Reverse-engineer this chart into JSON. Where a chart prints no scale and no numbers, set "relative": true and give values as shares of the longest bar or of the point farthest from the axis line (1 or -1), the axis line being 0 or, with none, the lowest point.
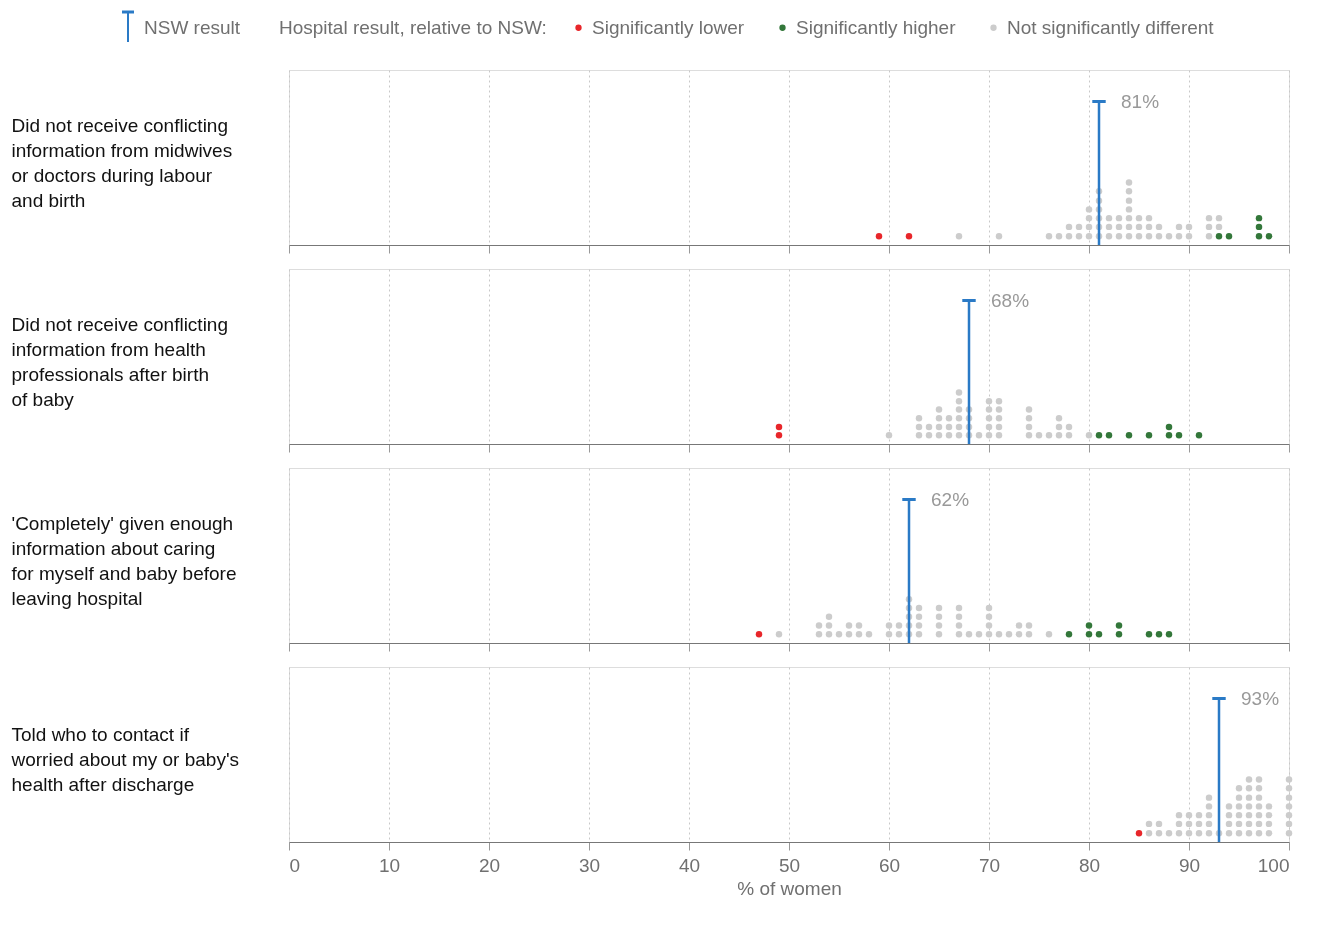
{
  "chart_data": [
    {
      "type": "scatter",
      "relative": true,
      "ylabel": "Did not receive conflicting information from midwives or doctors during labour and birth",
      "legend_title": "Hospital result, relative to NSW:",
      "annotations": [
        "NSW result"
      ],
      "legend": "top right",
      "marker": "circle",
      "grid": "x",
      "tick_labels": false,
      "xlim": [
        0,
        100
      ],
      "xticks": [
        0,
        10,
        20,
        30,
        40,
        50,
        60,
        70,
        80,
        90,
        100
      ],
      "ref_lines": [
        {
          "axis": "x",
          "value": 81,
          "label": "81%",
          "color": "#2a7ac6"
        }
      ],
      "series": [
        {
          "name": "Significantly lower",
          "color": "#e8262a",
          "x": [
            59,
            62
          ],
          "values": [
            0.14,
            0.14
          ]
        },
        {
          "name": "Significantly higher",
          "color": "#33773a",
          "x": [
            93,
            94,
            97,
            97,
            97,
            98
          ],
          "values": [
            0.14,
            0.14,
            0.14,
            0.29,
            0.43,
            0.14
          ]
        },
        {
          "name": "Not significantly different",
          "color": "#cccccc",
          "x": [
            67,
            71,
            76,
            77,
            78,
            78,
            79,
            79,
            80,
            80,
            80,
            80,
            81,
            81,
            81,
            81,
            81,
            81,
            82,
            82,
            82,
            83,
            83,
            83,
            84,
            84,
            84,
            84,
            84,
            84,
            84,
            85,
            85,
            85,
            86,
            86,
            86,
            87,
            87,
            88,
            89,
            89,
            90,
            90,
            92,
            92,
            92,
            93,
            93
          ],
          "values": [
            0.14,
            0.14,
            0.14,
            0.14,
            0.14,
            0.29,
            0.14,
            0.29,
            0.14,
            0.29,
            0.43,
            0.57,
            0.14,
            0.29,
            0.43,
            0.57,
            0.71,
            0.86,
            0.14,
            0.29,
            0.43,
            0.14,
            0.29,
            0.43,
            0.14,
            0.29,
            0.43,
            0.57,
            0.71,
            0.86,
            1,
            0.14,
            0.29,
            0.43,
            0.14,
            0.29,
            0.43,
            0.14,
            0.29,
            0.14,
            0.14,
            0.29,
            0.14,
            0.29,
            0.14,
            0.29,
            0.43,
            0.29,
            0.43
          ]
        }
      ]
    },
    {
      "type": "scatter",
      "relative": true,
      "ylabel": "Did not receive conflicting information from health professionals after birth of baby",
      "marker": "circle",
      "grid": "x",
      "tick_labels": false,
      "xlim": [
        0,
        100
      ],
      "xticks": [
        0,
        10,
        20,
        30,
        40,
        50,
        60,
        70,
        80,
        90,
        100
      ],
      "ref_lines": [
        {
          "axis": "x",
          "value": 68,
          "label": "68%",
          "color": "#2a7ac6"
        }
      ],
      "series": [
        {
          "name": "Significantly lower",
          "color": "#e8262a",
          "x": [
            49,
            49
          ],
          "values": [
            0.17,
            0.33
          ]
        },
        {
          "name": "Significantly higher",
          "color": "#33773a",
          "x": [
            81,
            82,
            84,
            86,
            88,
            88,
            89,
            91
          ],
          "values": [
            0.17,
            0.17,
            0.17,
            0.17,
            0.17,
            0.33,
            0.17,
            0.17
          ]
        },
        {
          "name": "Not significantly different",
          "color": "#cccccc",
          "x": [
            60,
            63,
            63,
            63,
            64,
            64,
            65,
            65,
            65,
            65,
            66,
            66,
            66,
            67,
            67,
            67,
            67,
            67,
            67,
            68,
            68,
            68,
            68,
            69,
            70,
            70,
            70,
            70,
            70,
            71,
            71,
            71,
            71,
            71,
            74,
            74,
            74,
            74,
            75,
            76,
            77,
            77,
            77,
            78,
            78,
            80
          ],
          "values": [
            0.17,
            0.17,
            0.33,
            0.5,
            0.17,
            0.33,
            0.17,
            0.33,
            0.5,
            0.67,
            0.17,
            0.33,
            0.5,
            0.17,
            0.33,
            0.5,
            0.67,
            0.83,
            1,
            0.17,
            0.33,
            0.5,
            0.67,
            0.17,
            0.17,
            0.33,
            0.5,
            0.67,
            0.83,
            0.17,
            0.33,
            0.5,
            0.67,
            0.83,
            0.17,
            0.33,
            0.5,
            0.67,
            0.17,
            0.17,
            0.17,
            0.33,
            0.5,
            0.17,
            0.33,
            0.17
          ]
        }
      ]
    },
    {
      "type": "scatter",
      "relative": true,
      "ylabel": "'Completely' given enough information about caring for myself and baby before leaving hospital",
      "marker": "circle",
      "grid": "x",
      "tick_labels": false,
      "xlim": [
        0,
        100
      ],
      "xticks": [
        0,
        10,
        20,
        30,
        40,
        50,
        60,
        70,
        80,
        90,
        100
      ],
      "ref_lines": [
        {
          "axis": "x",
          "value": 62,
          "label": "62%",
          "color": "#2a7ac6"
        }
      ],
      "series": [
        {
          "name": "Significantly lower",
          "color": "#e8262a",
          "x": [
            47
          ],
          "values": [
            0.2
          ]
        },
        {
          "name": "Significantly higher",
          "color": "#33773a",
          "x": [
            78,
            80,
            80,
            81,
            83,
            83,
            86,
            87,
            88
          ],
          "values": [
            0.2,
            0.2,
            0.4,
            0.2,
            0.2,
            0.4,
            0.2,
            0.2,
            0.2
          ]
        },
        {
          "name": "Not significantly different",
          "color": "#cccccc",
          "x": [
            49,
            53,
            53,
            54,
            54,
            54,
            55,
            56,
            56,
            57,
            57,
            58,
            60,
            60,
            61,
            61,
            62,
            62,
            62,
            62,
            62,
            63,
            63,
            63,
            63,
            65,
            65,
            65,
            65,
            67,
            67,
            67,
            67,
            68,
            69,
            70,
            70,
            70,
            70,
            71,
            72,
            73,
            73,
            74,
            74,
            76
          ],
          "values": [
            0.2,
            0.2,
            0.4,
            0.2,
            0.4,
            0.6,
            0.2,
            0.2,
            0.4,
            0.2,
            0.4,
            0.2,
            0.2,
            0.4,
            0.2,
            0.4,
            0.2,
            0.4,
            0.6,
            0.8,
            1,
            0.2,
            0.4,
            0.6,
            0.8,
            0.2,
            0.4,
            0.6,
            0.8,
            0.2,
            0.4,
            0.6,
            0.8,
            0.2,
            0.2,
            0.2,
            0.4,
            0.6,
            0.8,
            0.2,
            0.2,
            0.2,
            0.4,
            0.2,
            0.4,
            0.2
          ]
        }
      ]
    },
    {
      "type": "scatter",
      "relative": true,
      "ylabel": "Told who to contact if worried about my or baby's health after discharge",
      "xlabel": "% of women",
      "marker": "circle",
      "grid": "x",
      "tick_labels": "x",
      "xlim": [
        0,
        100
      ],
      "xticks": [
        0,
        10,
        20,
        30,
        40,
        50,
        60,
        70,
        80,
        90,
        100
      ],
      "ref_lines": [
        {
          "axis": "x",
          "value": 93,
          "label": "93%",
          "color": "#2a7ac6"
        }
      ],
      "series": [
        {
          "name": "Significantly lower",
          "color": "#e8262a",
          "x": [
            85
          ],
          "values": [
            0.14
          ]
        },
        {
          "name": "Not significantly different",
          "color": "#cccccc",
          "x": [
            86,
            86,
            87,
            87,
            88,
            89,
            89,
            89,
            90,
            90,
            90,
            91,
            91,
            91,
            92,
            92,
            92,
            92,
            92,
            93,
            94,
            94,
            94,
            94,
            95,
            95,
            95,
            95,
            95,
            95,
            96,
            96,
            96,
            96,
            96,
            96,
            96,
            97,
            97,
            97,
            97,
            97,
            97,
            97,
            98,
            98,
            98,
            98,
            100,
            100,
            100,
            100,
            100,
            100,
            100
          ],
          "values": [
            0.14,
            0.29,
            0.14,
            0.29,
            0.14,
            0.14,
            0.29,
            0.43,
            0.14,
            0.29,
            0.43,
            0.14,
            0.29,
            0.43,
            0.14,
            0.29,
            0.43,
            0.57,
            0.71,
            0.14,
            0.14,
            0.29,
            0.43,
            0.57,
            0.14,
            0.29,
            0.43,
            0.57,
            0.71,
            0.86,
            0.14,
            0.29,
            0.43,
            0.57,
            0.71,
            0.86,
            1,
            0.14,
            0.29,
            0.43,
            0.57,
            0.71,
            0.86,
            1,
            0.14,
            0.29,
            0.43,
            0.57,
            0.14,
            0.29,
            0.43,
            0.57,
            0.71,
            0.86,
            1
          ]
        }
      ]
    }
  ]
}
